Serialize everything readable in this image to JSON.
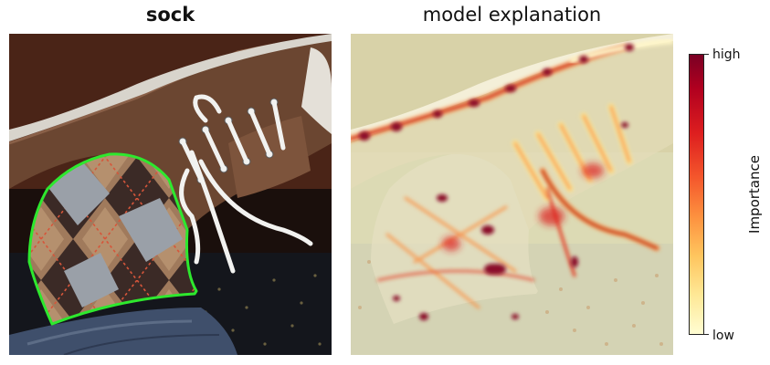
{
  "panels": {
    "left": {
      "title": "sock"
    },
    "right": {
      "title": "model explanation"
    }
  },
  "colorbar": {
    "high_label": "high",
    "low_label": "low",
    "axis_label": "Importance",
    "colormap": "YlOrRd",
    "colors": [
      "#7a0024",
      "#b0001f",
      "#dd1e1f",
      "#f4572c",
      "#fd913f",
      "#fec55e",
      "#fee896",
      "#fffdd2"
    ]
  },
  "colors": {
    "segmentation_outline": "#2ee82e",
    "shoe_canvas": "#6b4631",
    "laces": "#f2f2f0",
    "jeans": "#3f4f6b",
    "saliency_base": "#dcdab4"
  },
  "icons": [
    "photo-shoe-sock",
    "saliency-heatmap"
  ]
}
